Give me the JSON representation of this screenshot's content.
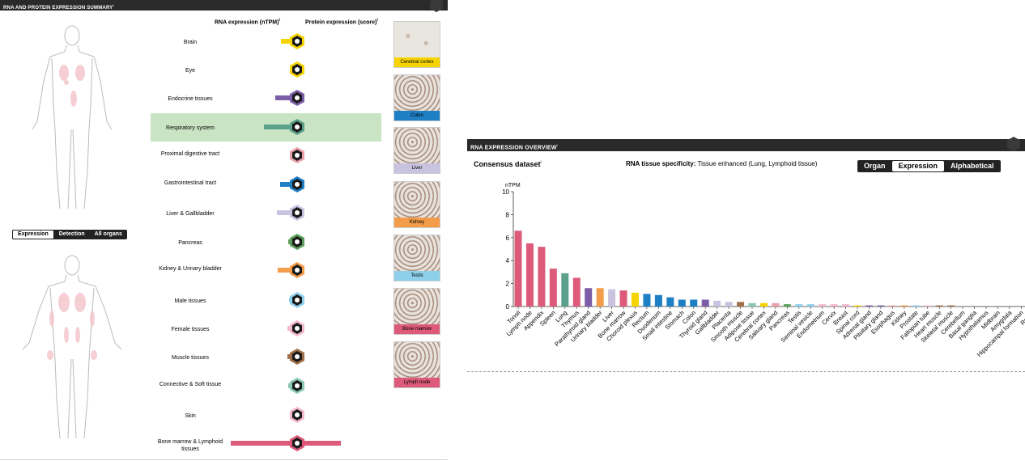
{
  "summary": {
    "title": "RNA AND PROTEIN EXPRESSION SUMMARY",
    "title_sup": "i",
    "rna_header": "RNA expression (nTPM)",
    "rna_header_sup": "i",
    "protein_header": "Protein expression (score)",
    "protein_header_sup": "i",
    "toggle_top": [
      "Expression",
      "Detection",
      "All organs"
    ],
    "toggle_top_active": "Expression",
    "organs": [
      {
        "label": "Brain",
        "rna": 1.0,
        "protein": 0,
        "color": "#f5d400"
      },
      {
        "label": "Eye",
        "rna": 0.0,
        "protein": 0,
        "color": "#f5d400"
      },
      {
        "label": "Endocrine tissues",
        "rna": 1.6,
        "protein": 0,
        "color": "#7b5ea7"
      },
      {
        "label": "Respiratory system",
        "rna": 2.9,
        "protein": 0,
        "color": "#5aa08a",
        "highlighted": true
      },
      {
        "label": "Proximal digestive tract",
        "rna": 0.0,
        "protein": 0,
        "color": "#e9a0a8"
      },
      {
        "label": "Gastrointestinal tract",
        "rna": 1.1,
        "protein": 0,
        "color": "#1f7fc5"
      },
      {
        "label": "Liver & Gallbladder",
        "rna": 1.5,
        "protein": 0,
        "color": "#c9c3e0"
      },
      {
        "label": "Pancreas",
        "rna": 0.2,
        "protein": 0,
        "color": "#5aa05a"
      },
      {
        "label": "Kidney & Urinary bladder",
        "rna": 1.4,
        "protein": 0,
        "color": "#f39c4a"
      },
      {
        "label": "Male tissues",
        "rna": 0.1,
        "protein": 0,
        "color": "#8ecfea"
      },
      {
        "label": "Female tissues",
        "rna": 0.3,
        "protein": 0,
        "color": "#f2b8cc"
      },
      {
        "label": "Muscle tissues",
        "rna": 0.3,
        "protein": 0,
        "color": "#a0714a"
      },
      {
        "label": "Connective & Soft tissue",
        "rna": 0.2,
        "protein": 0,
        "color": "#88c9b0"
      },
      {
        "label": "Skin",
        "rna": 0.0,
        "protein": 0,
        "color": "#f2b8cc"
      },
      {
        "label": "Bone marrow & Lymphoid tissues",
        "rna": 6.6,
        "protein": 3,
        "color": "#dd5a7a"
      }
    ],
    "thumbnails": [
      {
        "label": "Cerebral cortex",
        "color": "#f5d400"
      },
      {
        "label": "Colon",
        "color": "#1f7fc5"
      },
      {
        "label": "Liver",
        "color": "#c9c3e0"
      },
      {
        "label": "Kidney",
        "color": "#f39c4a"
      },
      {
        "label": "Testis",
        "color": "#8ecfea"
      },
      {
        "label": "Bone marrow",
        "color": "#dd5a7a"
      },
      {
        "label": "Lymph node",
        "color": "#dd5a7a"
      }
    ]
  },
  "overview": {
    "title": "RNA EXPRESSION OVERVIEW",
    "title_sup": "i",
    "dataset_label": "Consensus dataset",
    "dataset_sup": "i",
    "specificity_label": "RNA tissue specificity:",
    "specificity_value": "Tissue enhanced (Lung, Lymphoid tissue)",
    "toggle": [
      "Organ",
      "Expression",
      "Alphabetical"
    ],
    "toggle_active": "Expression"
  },
  "chart_data": {
    "type": "bar",
    "ylabel": "nTPM",
    "ylim": [
      0,
      10
    ],
    "yticks": [
      0,
      2,
      4,
      6,
      8,
      10
    ],
    "categories": [
      "Tonsil",
      "Lymph node",
      "Appendix",
      "Spleen",
      "Lung",
      "Thymus",
      "Parathyroid gland",
      "Urinary bladder",
      "Liver",
      "Bone marrow",
      "Choroid plexus",
      "Rectum",
      "Duodenum",
      "Small intestine",
      "Stomach",
      "Colon",
      "Thyroid gland",
      "Gallbladder",
      "Placenta",
      "Smooth muscle",
      "Adipose tissue",
      "Cerebral cortex",
      "Salivary gland",
      "Pancreas",
      "Testis",
      "Seminal vesicle",
      "Endometrium",
      "Cervix",
      "Breast",
      "Spinal cord",
      "Adrenal gland",
      "Pituitary gland",
      "Esophagus",
      "Kidney",
      "Prostate",
      "Fallopian tube",
      "Heart muscle",
      "Skeletal muscle",
      "Cerebellum",
      "Basal ganglia",
      "Hypothalamus",
      "Midbrain",
      "Amygdala",
      "Hippocampal formation",
      "Retina",
      "Tongue",
      "Epididymis",
      "Vagina",
      "Ovary",
      "Skin"
    ],
    "values": [
      6.6,
      5.5,
      5.2,
      3.3,
      2.9,
      2.5,
      1.6,
      1.6,
      1.5,
      1.4,
      1.2,
      1.1,
      1.0,
      0.8,
      0.6,
      0.6,
      0.6,
      0.5,
      0.4,
      0.4,
      0.3,
      0.3,
      0.3,
      0.2,
      0.2,
      0.2,
      0.2,
      0.2,
      0.2,
      0.1,
      0.1,
      0.1,
      0.1,
      0.1,
      0.1,
      0.1,
      0.1,
      0.1,
      0.0,
      0.0,
      0.0,
      0.0,
      0.0,
      0.0,
      0.0,
      0.0,
      0.0,
      0.0,
      0.0,
      0.0
    ],
    "colors": [
      "#dd5a7a",
      "#dd5a7a",
      "#dd5a7a",
      "#dd5a7a",
      "#5aa08a",
      "#dd5a7a",
      "#7b5ea7",
      "#f39c4a",
      "#c9c3e0",
      "#dd5a7a",
      "#f5d400",
      "#1f7fc5",
      "#1f7fc5",
      "#1f7fc5",
      "#1f7fc5",
      "#1f7fc5",
      "#7b5ea7",
      "#c9c3e0",
      "#c9c3e0",
      "#a0714a",
      "#88c9b0",
      "#f5d400",
      "#e9a0a8",
      "#5aa05a",
      "#8ecfea",
      "#8ecfea",
      "#f2b8cc",
      "#f2b8cc",
      "#f2b8cc",
      "#f5d400",
      "#7b5ea7",
      "#7b5ea7",
      "#e9a0a8",
      "#f39c4a",
      "#8ecfea",
      "#f2b8cc",
      "#a0714a",
      "#a0714a",
      "#f5d400",
      "#f5d400",
      "#f5d400",
      "#f5d400",
      "#f5d400",
      "#f5d400",
      "#f5d400",
      "#e9a0a8",
      "#8ecfea",
      "#f2b8cc",
      "#f2b8cc",
      "#f2b8cc"
    ]
  }
}
